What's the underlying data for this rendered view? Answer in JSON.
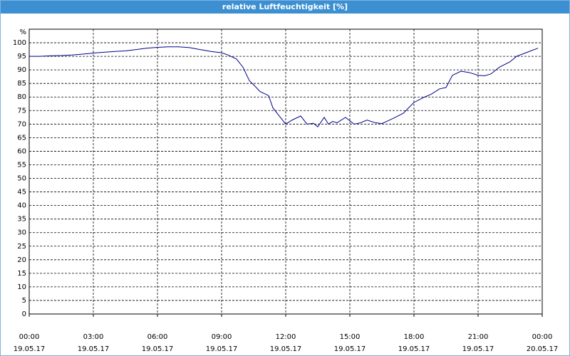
{
  "chart_data": {
    "type": "line",
    "title": "relative Luftfeuchtigkeit [%]",
    "ylabel": "%",
    "x": [
      0,
      0.5,
      1,
      1.5,
      2,
      2.5,
      3,
      3.5,
      4,
      4.5,
      5,
      5.5,
      6,
      6.5,
      7,
      7.5,
      8,
      8.5,
      9,
      9.3,
      9.7,
      10,
      10.3,
      10.5,
      10.8,
      11.2,
      11.4,
      11.7,
      12,
      12.3,
      12.7,
      13,
      13.3,
      13.5,
      13.8,
      14,
      14.2,
      14.4,
      14.8,
      15.2,
      15.5,
      15.8,
      16.2,
      16.5,
      17,
      17.5,
      18,
      18.5,
      18.8,
      19.2,
      19.5,
      19.8,
      20.2,
      20.6,
      21,
      21.3,
      21.6,
      22,
      22.5,
      22.8,
      23.3,
      23.8
    ],
    "series": [
      {
        "color": "#00008b",
        "values": [
          95,
          95,
          95.2,
          95.3,
          95.5,
          95.8,
          96.2,
          96.5,
          96.8,
          97,
          97.5,
          98,
          98.3,
          98.5,
          98.5,
          98.2,
          97.5,
          96.8,
          96.3,
          95.5,
          94,
          91,
          86,
          84.5,
          82,
          80.5,
          76,
          73,
          70,
          71.5,
          73,
          70,
          70.3,
          69,
          72.5,
          70,
          71,
          70.5,
          72.5,
          70,
          70.5,
          71.5,
          70.5,
          70.2,
          72,
          74,
          78,
          80,
          81,
          83,
          83.5,
          88,
          89.5,
          89,
          88,
          87.8,
          88.5,
          91,
          93,
          95,
          96.5,
          98
        ]
      }
    ],
    "xlim": [
      0,
      24
    ],
    "ylim": [
      0,
      105
    ],
    "xticks": [
      {
        "value": 0,
        "label": "00:00\n19.05.17"
      },
      {
        "value": 3,
        "label": "03:00\n19.05.17"
      },
      {
        "value": 6,
        "label": "06:00\n19.05.17"
      },
      {
        "value": 9,
        "label": "09:00\n19.05.17"
      },
      {
        "value": 12,
        "label": "12:00\n19.05.17"
      },
      {
        "value": 15,
        "label": "15:00\n19.05.17"
      },
      {
        "value": 18,
        "label": "18:00\n19.05.17"
      },
      {
        "value": 21,
        "label": "21:00\n19.05.17"
      },
      {
        "value": 24,
        "label": "00:00\n20.05.17"
      }
    ],
    "yticks": [
      0,
      5,
      10,
      15,
      20,
      25,
      30,
      35,
      40,
      45,
      50,
      55,
      60,
      65,
      70,
      75,
      80,
      85,
      90,
      95,
      100
    ],
    "grid": true
  }
}
